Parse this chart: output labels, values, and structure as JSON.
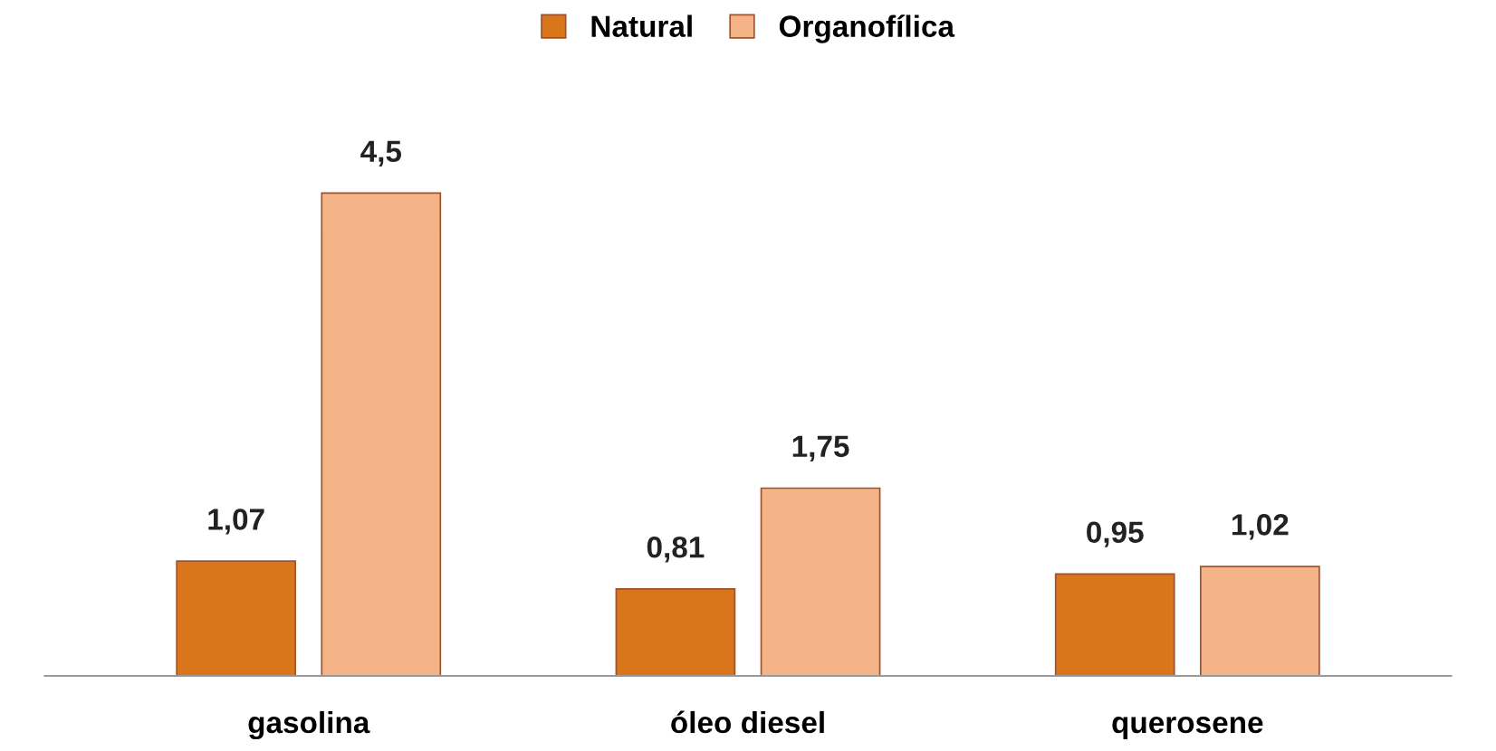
{
  "chart_data": {
    "type": "bar",
    "categories": [
      "gasolina",
      "óleo diesel",
      "querosene"
    ],
    "series": [
      {
        "name": "Natural",
        "color": "#d9761c",
        "values": [
          1.07,
          0.81,
          0.95
        ],
        "value_labels": [
          "1,07",
          "0,81",
          "0,95"
        ]
      },
      {
        "name": "Organofílica",
        "color": "#f5b487",
        "values": [
          4.5,
          1.75,
          1.02
        ],
        "value_labels": [
          "4,5",
          "1,75",
          "1,02"
        ]
      }
    ],
    "legend": "top",
    "grid": false
  }
}
